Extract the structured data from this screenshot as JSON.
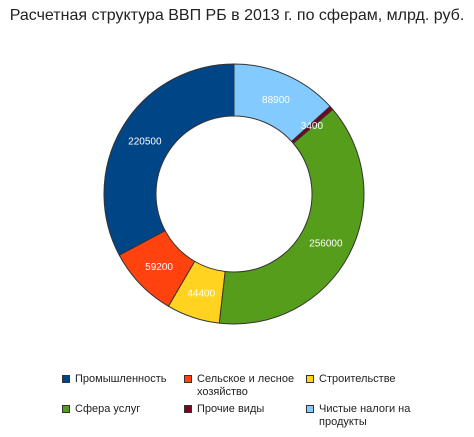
{
  "chart_data": {
    "type": "donut",
    "title": "Расчетная структура ВВП РБ в 2013 г. по сферам, млрд. руб.",
    "legend_position": "bottom",
    "series": [
      {
        "label": "Промышленность",
        "value": 220500,
        "color": "#004586"
      },
      {
        "label": "Сельское и лесное хозяйство",
        "value": 59200,
        "color": "#ff420e"
      },
      {
        "label": "Строительстве",
        "value": 44400,
        "color": "#ffd320"
      },
      {
        "label": "Сфера услуг",
        "value": 256000,
        "color": "#579d1c"
      },
      {
        "label": "Прочие виды",
        "value": 3400,
        "color": "#7e0021"
      },
      {
        "label": "Чистые налоги на продукты",
        "value": 88900,
        "color": "#83caff"
      }
    ]
  }
}
